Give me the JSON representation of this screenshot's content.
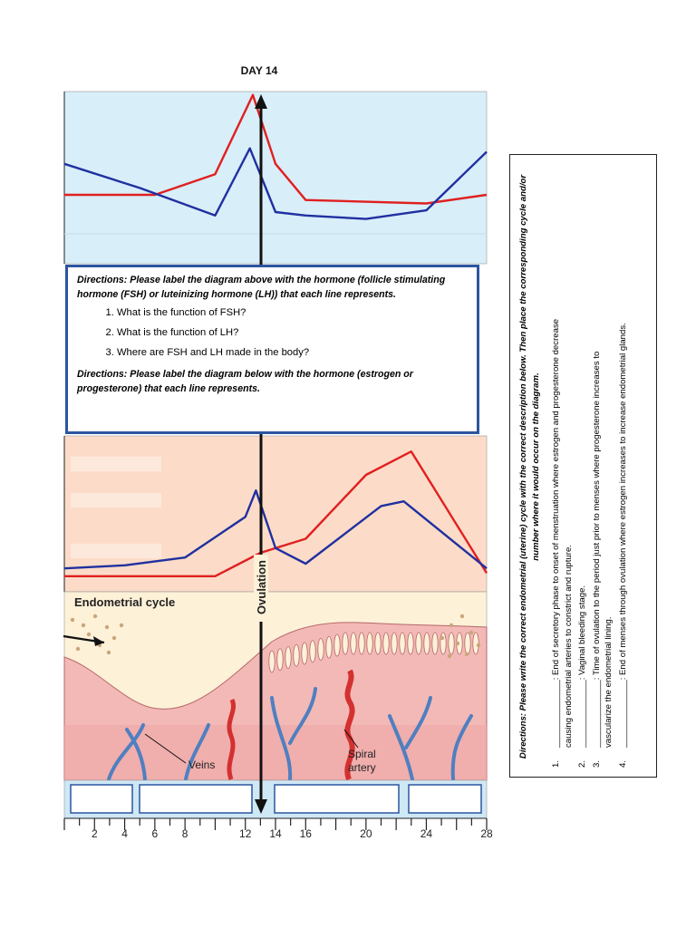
{
  "page_title": "DAY 14",
  "hormone_chart": {
    "series": [
      {
        "color": "#e02020",
        "points": [
          [
            0,
            40
          ],
          [
            6,
            40
          ],
          [
            10,
            52
          ],
          [
            12.5,
            98
          ],
          [
            14,
            58
          ],
          [
            16,
            37
          ],
          [
            24,
            35
          ],
          [
            28,
            40
          ]
        ]
      },
      {
        "color": "#2030a0",
        "points": [
          [
            0,
            58
          ],
          [
            5,
            44
          ],
          [
            10,
            28
          ],
          [
            12.3,
            67
          ],
          [
            14,
            30
          ],
          [
            16,
            28
          ],
          [
            20,
            26
          ],
          [
            24,
            31
          ],
          [
            28,
            65
          ]
        ]
      }
    ]
  },
  "directions_box": {
    "line1": "Directions: Please label the diagram above with the hormone (follicle stimulating hormone (FSH) or luteinizing hormone (LH)) that each line represents.",
    "questions": [
      "What is the function of FSH?",
      "What is the function of LH?",
      "Where are FSH and LH made in the body?"
    ],
    "line2": "Directions:  Please label the diagram below with the hormone (estrogen or progesterone) that each line represents."
  },
  "ovarian_chart": {
    "series": [
      {
        "color": "#e02020",
        "points": [
          [
            0,
            10
          ],
          [
            10,
            10
          ],
          [
            13,
            25
          ],
          [
            16,
            34
          ],
          [
            20,
            75
          ],
          [
            23,
            90
          ],
          [
            28,
            12
          ]
        ]
      },
      {
        "color": "#2030a0",
        "points": [
          [
            0,
            15
          ],
          [
            4,
            17
          ],
          [
            8,
            22
          ],
          [
            12,
            48
          ],
          [
            12.7,
            65
          ],
          [
            14,
            28
          ],
          [
            16,
            18
          ],
          [
            21,
            55
          ],
          [
            22.5,
            58
          ],
          [
            28,
            15
          ]
        ]
      }
    ]
  },
  "ovulation_label": "Ovulation",
  "endometrial_title": "Endometrial cycle",
  "veins_label": "Veins",
  "spiral_label_1": "Spiral",
  "spiral_label_2": "artery",
  "day_ticks": [
    "2",
    "4",
    "6",
    "8",
    "12",
    "14",
    "16",
    "20",
    "24",
    "28"
  ],
  "side_panel": {
    "directions": "Directions:  Please write the correct endometrial (uterine) cycle with the correct description below.  Then place the corresponding cycle and/or number where it would occur on the diagram.",
    "items": [
      {
        "num": "1.",
        "blank": "______________",
        "text": ": End of secretory phase to onset of menstruation where estrogen and progesterone decrease",
        "cont": "causing endometrial arteries to constrict and rupture."
      },
      {
        "num": "2.",
        "blank": "______________",
        "text": ": Vaginal bleeding stage.",
        "cont": ""
      },
      {
        "num": "3.",
        "blank": "______________",
        "text": ": Time of ovulation to the period just prior to menses where progesterone increases to",
        "cont": "vascularize the endometrial lining."
      },
      {
        "num": "4.",
        "blank": "______________",
        "text": ": End of menses through ovulation where estrogen increases to increase endometrial glands.",
        "cont": ""
      }
    ]
  }
}
